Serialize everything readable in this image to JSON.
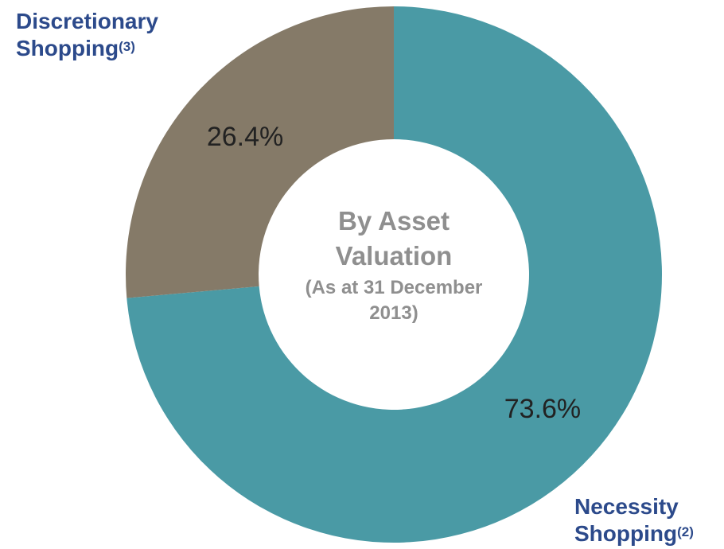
{
  "chart_data": {
    "type": "donut",
    "center_title": "By Asset Valuation",
    "center_subtitle": "(As at 31 December 2013)",
    "categories": [
      "Necessity Shopping",
      "Discretionary Shopping"
    ],
    "notes": [
      "(2)",
      "(3)"
    ],
    "values": [
      73.6,
      26.4
    ],
    "value_labels": [
      "73.6%",
      "26.4%"
    ],
    "colors": [
      "#4a9aa5",
      "#857a68"
    ]
  }
}
